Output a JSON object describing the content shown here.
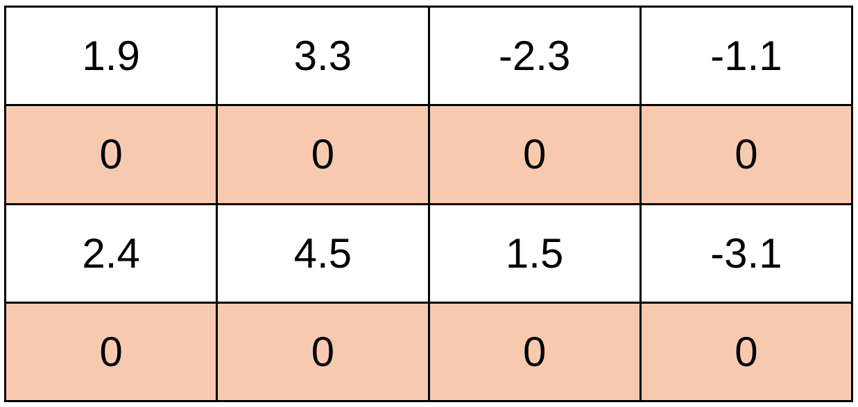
{
  "table": {
    "rows": [
      {
        "shaded": false,
        "cells": [
          "1.9",
          "3.3",
          "-2.3",
          "-1.1"
        ]
      },
      {
        "shaded": true,
        "cells": [
          "0",
          "0",
          "0",
          "0"
        ]
      },
      {
        "shaded": false,
        "cells": [
          "2.4",
          "4.5",
          "1.5",
          "-3.1"
        ]
      },
      {
        "shaded": true,
        "cells": [
          "0",
          "0",
          "0",
          "0"
        ]
      }
    ],
    "colors": {
      "shaded_fill": "#f7caaf",
      "plain_fill": "#ffffff",
      "border": "#000000"
    }
  }
}
